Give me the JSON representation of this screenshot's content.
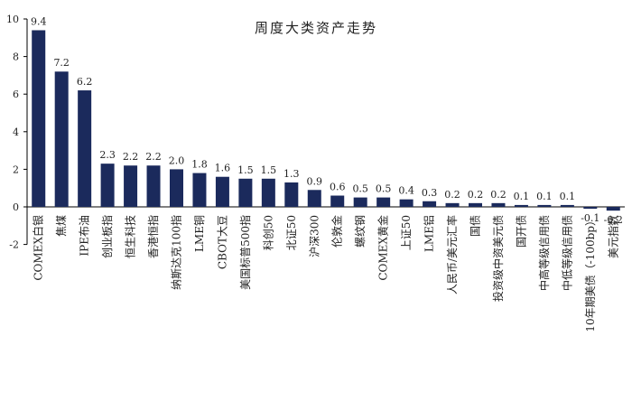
{
  "chart_data": {
    "type": "bar",
    "title": "周度大类资产走势",
    "xlabel": "",
    "ylabel": "",
    "ylim": [
      -2,
      10
    ],
    "yticks": [
      -2,
      0,
      2,
      4,
      6,
      8,
      10
    ],
    "bar_color": "#1b2a5c",
    "grid": false,
    "categories": [
      "COMEX白银",
      "焦煤",
      "IPE布油",
      "创业板指",
      "恒生科技",
      "香港恒指",
      "纳斯达克100指",
      "LME铜",
      "CBOT大豆",
      "美国标普500指",
      "科创50",
      "北证50",
      "沪深300",
      "伦敦金",
      "螺纹钢",
      "COMEX黄金",
      "上证50",
      "LME铝",
      "人民币/美元汇率",
      "国债",
      "投资级中资美元债",
      "国开债",
      "中高等级信用债",
      "中低等级信用债",
      "10年期美债（-100bp）",
      "美元指数"
    ],
    "values": [
      9.4,
      7.2,
      6.2,
      2.3,
      2.2,
      2.2,
      2.0,
      1.8,
      1.6,
      1.5,
      1.5,
      1.3,
      0.9,
      0.6,
      0.5,
      0.5,
      0.4,
      0.3,
      0.2,
      0.2,
      0.2,
      0.1,
      0.1,
      0.1,
      -0.1,
      -0.2
    ],
    "value_labels": [
      "9.4",
      "7.2",
      "6.2",
      "2.3",
      "2.2",
      "2.2",
      "2.0",
      "1.8",
      "1.6",
      "1.5",
      "1.5",
      "1.3",
      "0.9",
      "0.6",
      "0.5",
      "0.5",
      "0.4",
      "0.3",
      "0.2",
      "0.2",
      "0.2",
      "0.1",
      "0.1",
      "0.1",
      "-0.1",
      "-0.2"
    ]
  }
}
